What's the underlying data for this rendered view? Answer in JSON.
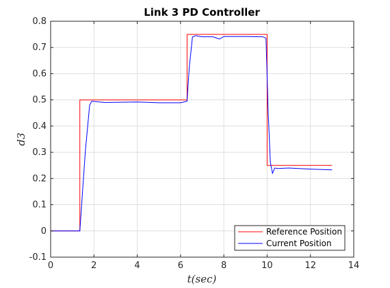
{
  "chart_data": {
    "type": "line",
    "title": "Link 3 PD Controller",
    "xlabel": "t(sec)",
    "ylabel": "d3",
    "xlim": [
      0,
      14
    ],
    "ylim": [
      -0.1,
      0.8
    ],
    "xticks": [
      "0",
      "2",
      "4",
      "6",
      "8",
      "10",
      "12",
      "14"
    ],
    "yticks": [
      "-0.1",
      "0",
      "0.1",
      "0.2",
      "0.3",
      "0.4",
      "0.5",
      "0.6",
      "0.7",
      "0.8"
    ],
    "grid": true,
    "legend_position": "bottom-right",
    "series": [
      {
        "name": "Reference Position",
        "color": "#ff0000",
        "x": [
          0,
          1.35,
          1.35,
          6.3,
          6.3,
          10.0,
          10.0,
          13.0
        ],
        "y": [
          0,
          0,
          0.5,
          0.5,
          0.75,
          0.75,
          0.25,
          0.25
        ]
      },
      {
        "name": "Current Position",
        "color": "#0000ff",
        "x": [
          0,
          1.35,
          1.6,
          1.8,
          1.9,
          2.5,
          4.0,
          5.0,
          6.0,
          6.3,
          6.4,
          6.55,
          6.7,
          7.0,
          7.5,
          7.8,
          8.0,
          9.0,
          9.8,
          9.95,
          10.05,
          10.15,
          10.25,
          10.35,
          10.5,
          11.0,
          12.0,
          13.0
        ],
        "y": [
          0,
          0,
          0.3,
          0.48,
          0.495,
          0.49,
          0.492,
          0.489,
          0.489,
          0.495,
          0.62,
          0.74,
          0.745,
          0.741,
          0.741,
          0.732,
          0.742,
          0.742,
          0.741,
          0.735,
          0.45,
          0.26,
          0.22,
          0.24,
          0.238,
          0.24,
          0.236,
          0.233
        ]
      }
    ]
  }
}
